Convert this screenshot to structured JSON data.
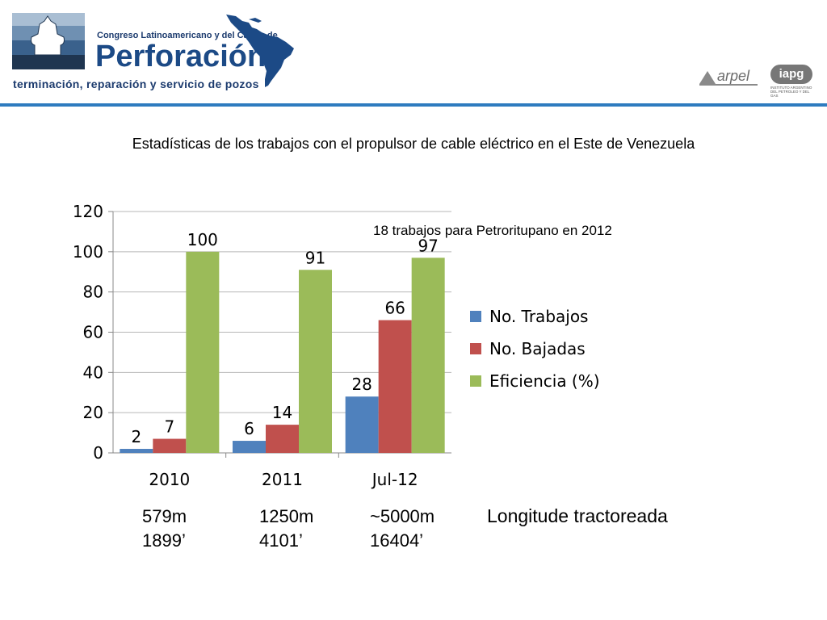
{
  "header": {
    "congress_line": "Congreso Latinoamericano y del Caribe de",
    "brand": "Perforación",
    "subtitle": "terminación, reparación y servicio de pozos",
    "arpel": "arpel",
    "iapg": "iapg",
    "iapg_sub": "INSTITUTO ARGENTINO DEL PETROLEO Y DEL GAS"
  },
  "colors": {
    "header_rule": "#2e7bbf",
    "series1": "#4f81bd",
    "series2": "#c0504d",
    "series3": "#9bbb59"
  },
  "slide_title": "Estadísticas de los trabajos con el propulsor de cable eléctrico en el Este de Venezuela",
  "chart_note": "18 trabajos para Petroritupano en 2012",
  "chart_data": {
    "type": "bar",
    "categories": [
      "2010",
      "2011",
      "Jul-12"
    ],
    "series": [
      {
        "name": "No. Trabajos",
        "values": [
          2,
          6,
          28
        ],
        "color": "#4f81bd"
      },
      {
        "name": "No. Bajadas",
        "values": [
          7,
          14,
          66
        ],
        "color": "#c0504d"
      },
      {
        "name": "Eficiencia (%)",
        "values": [
          100,
          91,
          97
        ],
        "color": "#9bbb59"
      }
    ],
    "ylim": [
      0,
      120
    ],
    "yticks": [
      0,
      20,
      40,
      60,
      80,
      100,
      120
    ],
    "grid": true,
    "legend": "right",
    "data_labels": true
  },
  "lengths": [
    {
      "meters": "579m",
      "feet": "1899’"
    },
    {
      "meters": "1250m",
      "feet": "4101’"
    },
    {
      "meters": "~5000m",
      "feet": "16404’"
    }
  ],
  "lengths_label": "Longitude tractoreada"
}
